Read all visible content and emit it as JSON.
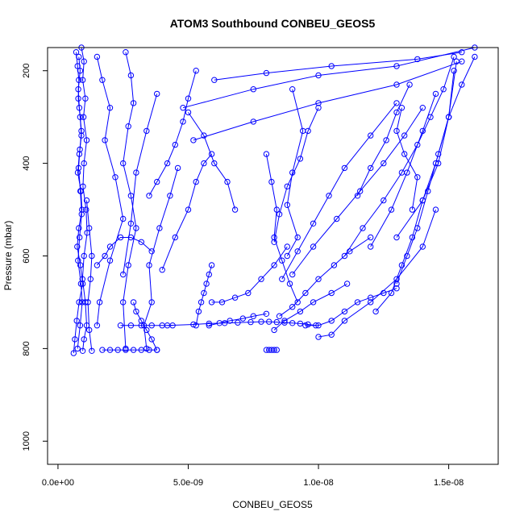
{
  "chart_data": {
    "type": "line",
    "title": "ATOM3 Southbound CONBEU_GEOS5",
    "xlabel": "CONBEU_GEOS5",
    "ylabel": "Pressure (mbar)",
    "xlim": [
      -4e-10,
      1.69e-08
    ],
    "ylim": [
      1050,
      150
    ],
    "y_reversed": true,
    "x_ticks": [
      0,
      5e-09,
      1e-08,
      1.5e-08
    ],
    "x_tick_labels": [
      "0.0e+00",
      "5.0e-09",
      "1.0e-08",
      "1.5e-08"
    ],
    "y_ticks": [
      200,
      400,
      600,
      800,
      1000
    ],
    "y_tick_labels": [
      "200",
      "400",
      "600",
      "800",
      "1000"
    ],
    "grid": false,
    "legend": "none",
    "marker": "open-circle",
    "color": "#0000ff",
    "series": [
      {
        "x": [
          7e-10,
          7.5e-10,
          8e-10,
          7.8e-10,
          8.5e-10,
          9e-10,
          8.2e-10,
          7.6e-10,
          8.8e-10,
          9.2e-10,
          8e-10,
          7.4e-10,
          8.6e-10,
          9.5e-10,
          8.1e-10,
          7.2e-10,
          6.5e-10,
          6e-10
        ],
        "y": [
          160,
          190,
          220,
          260,
          300,
          340,
          380,
          420,
          460,
          500,
          540,
          580,
          620,
          660,
          700,
          740,
          780,
          810
        ]
      },
      {
        "x": [
          9e-10,
          1e-09,
          9.5e-10,
          1.05e-09,
          9.8e-10,
          1.1e-09,
          1e-09,
          9.6e-10,
          1.08e-09,
          1.12e-09,
          1e-09,
          9.4e-10,
          1.05e-09,
          1.1e-09,
          1e-09,
          9.5e-10
        ],
        "y": [
          150,
          180,
          220,
          260,
          300,
          350,
          400,
          450,
          500,
          550,
          600,
          650,
          700,
          750,
          780,
          805
        ]
      },
      {
        "x": [
          8e-10,
          8.5e-10,
          7.8e-10,
          8.2e-10,
          9e-10,
          8.4e-10,
          7.9e-10,
          8.6e-10,
          9.1e-10,
          8.3e-10,
          7.7e-10,
          8.8e-10,
          9.3e-10,
          8.5e-10,
          7.5e-10
        ],
        "y": [
          170,
          200,
          240,
          280,
          330,
          370,
          410,
          460,
          510,
          560,
          610,
          660,
          700,
          750,
          800
        ]
      },
      {
        "x": [
          1.5e-09,
          1.7e-09,
          2e-09,
          1.8e-09,
          2.2e-09,
          2.5e-09,
          2e-09,
          1.6e-09,
          1.5e-09
        ],
        "y": [
          170,
          220,
          280,
          350,
          430,
          520,
          610,
          700,
          750
        ]
      },
      {
        "x": [
          2.6e-09,
          2.8e-09,
          2.9e-09,
          2.7e-09,
          2.5e-09,
          2.8e-09,
          3e-09,
          2.7e-09,
          2.5e-09,
          2.6e-09
        ],
        "y": [
          160,
          210,
          270,
          320,
          400,
          470,
          540,
          620,
          700,
          800
        ]
      },
      {
        "x": [
          3.5e-09,
          3.8e-09,
          4.2e-09,
          4.5e-09,
          4.8e-09,
          5e-09,
          5.3e-09
        ],
        "y": [
          470,
          440,
          400,
          360,
          310,
          260,
          200
        ]
      },
      {
        "x": [
          4.6e-09,
          4.3e-09,
          3.9e-09,
          3.5e-09,
          3.6e-09,
          3.3e-09,
          3.4e-09
        ],
        "y": [
          410,
          470,
          540,
          620,
          700,
          750,
          800
        ]
      },
      {
        "x": [
          3.8e-09,
          3.4e-09,
          3e-09,
          2.8e-09,
          2.5e-09
        ],
        "y": [
          250,
          330,
          420,
          530,
          640
        ]
      },
      {
        "x": [
          5.3e-09,
          5.4e-09,
          5.5e-09,
          5.6e-09,
          5.7e-09,
          5.8e-09,
          5.9e-09
        ],
        "y": [
          750,
          720,
          700,
          680,
          660,
          640,
          620
        ]
      },
      {
        "x": [
          5.8e-09,
          6.2e-09,
          6.6e-09,
          7.1e-09,
          7.5e-09,
          8e-09
        ],
        "y": [
          750,
          745,
          740,
          735,
          730,
          725
        ]
      },
      {
        "x": [
          5.9e-09,
          6.3e-09,
          6.8e-09,
          7.3e-09,
          7.8e-09,
          8.3e-09,
          8.8e-09
        ],
        "y": [
          700,
          700,
          690,
          680,
          650,
          620,
          580
        ]
      },
      {
        "x": [
          8e-09,
          8.1e-09,
          8.2e-09,
          8.3e-09,
          8.4e-09
        ],
        "y": [
          803,
          803,
          803,
          803,
          803
        ]
      },
      {
        "x": [
          8.3e-09,
          8.7e-09,
          9.3e-09,
          9.8e-09,
          1.05e-08,
          1.11e-08
        ],
        "y": [
          760,
          740,
          720,
          700,
          680,
          660
        ]
      },
      {
        "x": [
          8.5e-09,
          9e-09,
          9.5e-09,
          1e-08,
          1.06e-08,
          1.12e-08,
          1.2e-08
        ],
        "y": [
          730,
          710,
          680,
          650,
          620,
          590,
          560
        ]
      },
      {
        "x": [
          9.5e-09,
          1e-08,
          1.05e-08,
          1.1e-08,
          1.15e-08,
          1.2e-08,
          1.25e-08,
          1.3e-08
        ],
        "y": [
          750,
          750,
          740,
          720,
          700,
          690,
          680,
          670
        ]
      },
      {
        "x": [
          1e-08,
          1.05e-08,
          1.1e-08,
          1.2e-08,
          1.3e-08,
          1.4e-08,
          1.45e-08
        ],
        "y": [
          775,
          770,
          740,
          700,
          650,
          580,
          500
        ]
      },
      {
        "x": [
          1.22e-08,
          1.28e-08,
          1.32e-08,
          1.36e-08,
          1.4e-08,
          1.45e-08,
          1.5e-08,
          1.53e-08
        ],
        "y": [
          720,
          680,
          620,
          560,
          480,
          400,
          300,
          180
        ]
      },
      {
        "x": [
          1.3e-08,
          1.34e-08,
          1.38e-08,
          1.42e-08,
          1.46e-08,
          1.5e-08,
          1.55e-08,
          1.6e-08
        ],
        "y": [
          660,
          600,
          540,
          460,
          380,
          300,
          230,
          170
        ]
      },
      {
        "x": [
          1.1e-08,
          1.17e-08,
          1.25e-08,
          1.32e-08,
          1.38e-08,
          1.43e-08,
          1.48e-08,
          1.52e-08
        ],
        "y": [
          600,
          540,
          480,
          420,
          360,
          300,
          240,
          170
        ]
      },
      {
        "x": [
          9e-09,
          9.8e-09,
          1.07e-08,
          1.16e-08,
          1.25e-08,
          1.33e-08,
          1.4e-08
        ],
        "y": [
          640,
          580,
          520,
          460,
          400,
          340,
          280
        ]
      },
      {
        "x": [
          8.6e-09,
          9.2e-09,
          9.8e-09,
          1.04e-08,
          1.1e-08,
          1.2e-08,
          1.3e-08
        ],
        "y": [
          650,
          590,
          530,
          470,
          410,
          340,
          270
        ]
      },
      {
        "x": [
          8e-09,
          8.2e-09,
          8.4e-09,
          8.3e-09,
          8.6e-09,
          8.9e-09,
          9.2e-09
        ],
        "y": [
          380,
          440,
          500,
          560,
          610,
          660,
          700
        ]
      },
      {
        "x": [
          1e-08,
          9.6e-09,
          9.3e-09,
          8.8e-09,
          8.5e-09,
          8.3e-09
        ],
        "y": [
          280,
          330,
          390,
          450,
          510,
          570
        ]
      },
      {
        "x": [
          6.8e-09,
          6.5e-09,
          6e-09,
          5.6e-09,
          5e-09
        ],
        "y": [
          500,
          440,
          400,
          340,
          290
        ]
      },
      {
        "x": [
          4e-09,
          4.5e-09,
          5e-09,
          5.3e-09,
          5.6e-09,
          5.9e-09
        ],
        "y": [
          630,
          560,
          500,
          440,
          400,
          380
        ]
      },
      {
        "x": [
          5.2e-09,
          7.5e-09,
          1e-08,
          1.3e-08,
          1.55e-08
        ],
        "y": [
          350,
          310,
          270,
          230,
          180
        ]
      },
      {
        "x": [
          4.8e-09,
          7.5e-09,
          1e-08,
          1.3e-08,
          1.6e-08
        ],
        "y": [
          280,
          240,
          210,
          190,
          150
        ]
      },
      {
        "x": [
          6e-09,
          8e-09,
          1.05e-08,
          1.38e-08,
          1.55e-08
        ],
        "y": [
          220,
          205,
          190,
          175,
          160
        ]
      },
      {
        "x": [
          4.2e-09,
          5.2e-09,
          5.8e-09,
          6.4e-09,
          6.9e-09,
          7.4e-09,
          7.8e-09,
          8.1e-09,
          8.4e-09,
          8.7e-09,
          9e-09,
          9.3e-09,
          9.6e-09,
          9.9e-09
        ],
        "y": [
          750,
          748,
          746,
          745,
          744,
          743,
          742,
          742,
          743,
          744,
          745,
          746,
          748,
          750
        ]
      },
      {
        "x": [
          2.4e-09,
          2.8e-09,
          3.2e-09,
          3.6e-09,
          4e-09,
          4.4e-09
        ],
        "y": [
          750,
          750,
          750,
          750,
          750,
          750
        ]
      },
      {
        "x": [
          1.7e-09,
          2e-09,
          2.3e-09,
          2.6e-09,
          2.9e-09,
          3.2e-09,
          3.5e-09,
          3.8e-09
        ],
        "y": [
          803,
          803,
          803,
          803,
          803,
          803,
          803,
          803
        ]
      },
      {
        "x": [
          3.8e-09,
          3.6e-09,
          3.4e-09,
          3.2e-09,
          3e-09,
          2.9e-09
        ],
        "y": [
          803,
          780,
          760,
          740,
          720,
          700
        ]
      },
      {
        "x": [
          1.1e-09,
          1.2e-09,
          1.3e-09,
          1.25e-09,
          1.15e-09,
          1.2e-09,
          1.3e-09
        ],
        "y": [
          480,
          540,
          600,
          650,
          700,
          760,
          805
        ]
      },
      {
        "x": [
          1.5e-09,
          1.8e-09,
          2e-09,
          2.4e-09,
          2.8e-09,
          3.2e-09,
          3.6e-09
        ],
        "y": [
          620,
          600,
          580,
          560,
          560,
          570,
          590
        ]
      },
      {
        "x": [
          1.3e-08,
          1.4e-08,
          1.46e-08,
          1.5e-08,
          1.52e-08
        ],
        "y": [
          560,
          480,
          400,
          300,
          200
        ]
      },
      {
        "x": [
          1.2e-08,
          1.28e-08,
          1.34e-08,
          1.4e-08,
          1.45e-08
        ],
        "y": [
          580,
          500,
          420,
          330,
          250
        ]
      },
      {
        "x": [
          9e-09,
          9.4e-09,
          9e-09,
          8.8e-09,
          9.2e-09,
          8.8e-09
        ],
        "y": [
          240,
          330,
          420,
          490,
          560,
          600
        ]
      },
      {
        "x": [
          1.15e-08,
          1.2e-08,
          1.26e-08,
          1.3e-08,
          1.35e-08
        ],
        "y": [
          470,
          410,
          350,
          290,
          230
        ]
      },
      {
        "x": [
          1.36e-08,
          1.38e-08,
          1.33e-08,
          1.3e-08,
          1.32e-08
        ],
        "y": [
          500,
          430,
          380,
          330,
          280
        ]
      }
    ]
  }
}
